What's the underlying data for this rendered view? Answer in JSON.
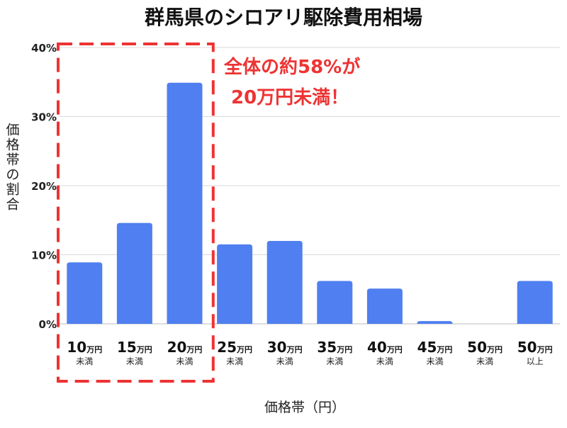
{
  "chart_data": {
    "type": "bar",
    "title": "群馬県のシロアリ駆除費用相場",
    "xlabel": "価格帯（円）",
    "ylabel": "価格帯の割合",
    "ylim": [
      0,
      40
    ],
    "yticks": [
      "0%",
      "10%",
      "20%",
      "30%",
      "40%"
    ],
    "ytick_values": [
      0,
      10,
      20,
      30,
      40
    ],
    "grid": true,
    "categories": [
      {
        "num": "10",
        "unit": "万円",
        "sub": "未満"
      },
      {
        "num": "15",
        "unit": "万円",
        "sub": "未満"
      },
      {
        "num": "20",
        "unit": "万円",
        "sub": "未満"
      },
      {
        "num": "25",
        "unit": "万円",
        "sub": "未満"
      },
      {
        "num": "30",
        "unit": "万円",
        "sub": "未満"
      },
      {
        "num": "35",
        "unit": "万円",
        "sub": "未満"
      },
      {
        "num": "40",
        "unit": "万円",
        "sub": "未満"
      },
      {
        "num": "45",
        "unit": "万円",
        "sub": "未満"
      },
      {
        "num": "50",
        "unit": "万円",
        "sub": "未満"
      },
      {
        "num": "50",
        "unit": "万円",
        "sub": "以上"
      }
    ],
    "values": [
      8.9,
      14.6,
      34.9,
      11.5,
      12.0,
      6.2,
      5.1,
      0.4,
      0,
      6.2
    ],
    "annotation": {
      "lines": [
        "全体の約58%が",
        "20万円未満！"
      ],
      "highlight_first_n": 3
    },
    "colors": {
      "bar": "#4f7ff0",
      "annotation": "#ee3333",
      "grid": "#d9d9d9",
      "axis_text": "#222222"
    }
  }
}
